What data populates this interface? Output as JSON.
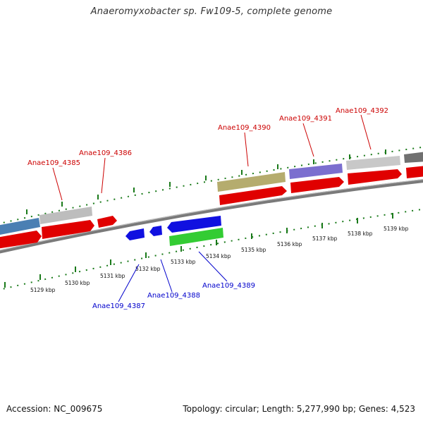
{
  "title": "Anaeromyxobacter sp. Fw109-5, complete genome",
  "accession": "Accession: NC_009675",
  "summary": "Topology: circular; Length: 5,277,990 bp; Genes: 4,523",
  "colors": {
    "forward_label": "#cc0000",
    "reverse_label": "#0000cc",
    "tick": "#1a7a1a",
    "backbone": "#7a7a7a"
  },
  "kbp_ticks": [
    "5129 kbp",
    "5130 kbp",
    "5131 kbp",
    "5132 kbp",
    "5133 kbp",
    "5134 kbp",
    "5135 kbp",
    "5136 kbp",
    "5137 kbp",
    "5138 kbp",
    "5139 kbp"
  ],
  "forward_genes": [
    "Anae109_4385",
    "Anae109_4386",
    "Anae109_4390",
    "Anae109_4391",
    "Anae109_4392"
  ],
  "reverse_genes": [
    "Anae109_4387",
    "Anae109_4388",
    "Anae109_4389"
  ]
}
